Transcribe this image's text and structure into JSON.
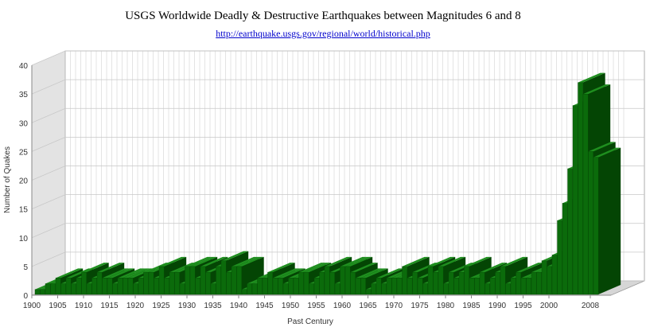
{
  "chart_data": {
    "type": "bar",
    "title": "USGS Worldwide Deadly & Destructive Earthquakes between Magnitudes 6 and 8",
    "subtitle": "http://earthquake.usgs.gov/regional/world/historical.php",
    "xlabel": "Past Century",
    "ylabel": "Number of Quakes",
    "ylim": [
      0,
      40
    ],
    "yticks": [
      0,
      5,
      10,
      15,
      20,
      25,
      30,
      35,
      40
    ],
    "xtick_labels": [
      "1900",
      "1905",
      "1910",
      "1915",
      "1920",
      "1925",
      "1930",
      "1935",
      "1940",
      "1945",
      "1950",
      "1955",
      "1960",
      "1965",
      "1970",
      "1975",
      "1980",
      "1985",
      "1990",
      "1995",
      "2000",
      "2008"
    ],
    "grid": true,
    "legend": "none",
    "colors": {
      "bar_front": "#0b6b0b",
      "bar_top": "#1f8f1f",
      "bar_side": "#044504",
      "wall": "#e3e3e3",
      "grid": "#c8c8c8"
    },
    "x": [
      1900,
      1901,
      1902,
      1903,
      1904,
      1905,
      1906,
      1907,
      1908,
      1909,
      1910,
      1911,
      1912,
      1913,
      1914,
      1915,
      1916,
      1917,
      1918,
      1919,
      1920,
      1921,
      1922,
      1923,
      1924,
      1925,
      1926,
      1927,
      1928,
      1929,
      1930,
      1931,
      1932,
      1933,
      1934,
      1935,
      1936,
      1937,
      1938,
      1939,
      1940,
      1941,
      1942,
      1943,
      1944,
      1945,
      1946,
      1947,
      1948,
      1949,
      1950,
      1951,
      1952,
      1953,
      1954,
      1955,
      1956,
      1957,
      1958,
      1959,
      1960,
      1961,
      1962,
      1963,
      1964,
      1965,
      1966,
      1967,
      1968,
      1969,
      1970,
      1971,
      1972,
      1973,
      1974,
      1975,
      1976,
      1977,
      1978,
      1979,
      1980,
      1981,
      1982,
      1983,
      1984,
      1985,
      1986,
      1987,
      1988,
      1989,
      1990,
      1991,
      1992,
      1993,
      1994,
      1995,
      1996,
      1997,
      1998,
      1999,
      2000,
      2001,
      2002,
      2003,
      2004,
      2005,
      2006,
      2007,
      2008
    ],
    "values": [
      1,
      1,
      2,
      2,
      3,
      2,
      3,
      2,
      3,
      4,
      2,
      3,
      4,
      3,
      3,
      2,
      3,
      3,
      3,
      2,
      3,
      4,
      4,
      3,
      5,
      3,
      4,
      4,
      2,
      5,
      5,
      3,
      5,
      4,
      2,
      5,
      6,
      4,
      5,
      5,
      1,
      2,
      2,
      3,
      3,
      4,
      3,
      3,
      2,
      3,
      3,
      4,
      4,
      2,
      3,
      4,
      5,
      4,
      2,
      5,
      5,
      4,
      3,
      3,
      1,
      2,
      3,
      2,
      3,
      3,
      3,
      5,
      3,
      4,
      3,
      2,
      5,
      4,
      5,
      2,
      4,
      3,
      4,
      5,
      3,
      3,
      4,
      2,
      3,
      4,
      5,
      2,
      3,
      4,
      3,
      3,
      4,
      4,
      6,
      5,
      7,
      13,
      16,
      22,
      33,
      37,
      35,
      25,
      24
    ]
  }
}
